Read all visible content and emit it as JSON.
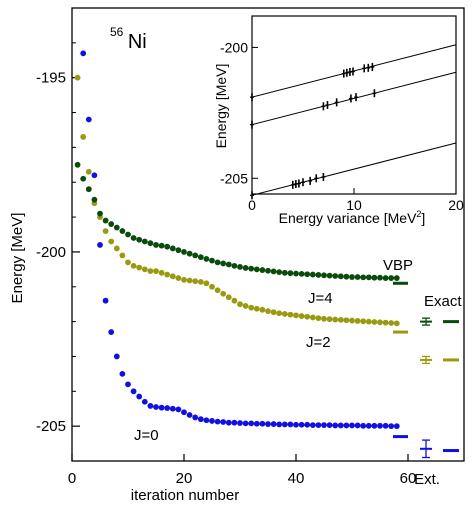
{
  "chart_data": [
    {
      "type": "scatter",
      "title": "",
      "annotation": {
        "isotope_mass": "56",
        "element": "Ni"
      },
      "xlabel": "iteration number",
      "ylabel": "Energy [MeV]",
      "xlim": [
        0,
        70
      ],
      "ylim": [
        -206,
        -193
      ],
      "xticks": [
        0,
        20,
        40,
        60
      ],
      "xtick_labels": [
        "0",
        "20",
        "40",
        "60"
      ],
      "extra_xtick_label": "Ext.",
      "yticks": [
        -195,
        -200,
        -205
      ],
      "ytick_labels": [
        "-195",
        "-200",
        "-205"
      ],
      "grid": false,
      "series": [
        {
          "name": "J=0",
          "color": "#1010e0",
          "x": [
            2,
            3,
            4,
            5,
            6,
            7,
            8,
            9,
            10,
            11,
            12,
            13,
            14,
            15,
            16,
            17,
            18,
            19,
            20,
            21,
            22,
            23,
            24,
            25,
            26,
            27,
            28,
            29,
            30,
            31,
            32,
            33,
            34,
            35,
            36,
            37,
            38,
            39,
            40,
            41,
            42,
            43,
            44,
            45,
            46,
            47,
            48,
            49,
            50,
            51,
            52,
            53,
            54,
            55,
            56,
            57,
            58
          ],
          "values": [
            -194.3,
            -196.2,
            -197.8,
            -199.8,
            -201.4,
            -202.3,
            -203.0,
            -203.5,
            -203.8,
            -204.0,
            -204.15,
            -204.3,
            -204.42,
            -204.45,
            -204.47,
            -204.48,
            -204.5,
            -204.52,
            -204.6,
            -204.68,
            -204.75,
            -204.8,
            -204.83,
            -204.85,
            -204.87,
            -204.88,
            -204.9,
            -204.9,
            -204.91,
            -204.92,
            -204.92,
            -204.93,
            -204.93,
            -204.94,
            -204.94,
            -204.95,
            -204.95,
            -204.95,
            -204.96,
            -204.96,
            -204.96,
            -204.97,
            -204.97,
            -204.97,
            -204.97,
            -204.98,
            -204.98,
            -204.98,
            -204.98,
            -204.98,
            -204.99,
            -204.99,
            -204.99,
            -204.99,
            -204.99,
            -205.0,
            -205.0
          ]
        },
        {
          "name": "J=2",
          "color": "#9a9a10",
          "x": [
            1,
            2,
            3,
            4,
            5,
            6,
            7,
            8,
            9,
            10,
            11,
            12,
            13,
            14,
            15,
            16,
            17,
            18,
            19,
            20,
            21,
            22,
            23,
            24,
            25,
            26,
            27,
            28,
            29,
            30,
            31,
            32,
            33,
            34,
            35,
            36,
            37,
            38,
            39,
            40,
            41,
            42,
            43,
            44,
            45,
            46,
            47,
            48,
            49,
            50,
            51,
            52,
            53,
            54,
            55,
            56,
            57,
            58
          ],
          "values": [
            -195.0,
            -196.7,
            -197.7,
            -198.6,
            -199.0,
            -199.4,
            -199.7,
            -199.9,
            -200.1,
            -200.3,
            -200.4,
            -200.45,
            -200.5,
            -200.55,
            -200.55,
            -200.6,
            -200.65,
            -200.7,
            -200.75,
            -200.8,
            -200.82,
            -200.84,
            -200.86,
            -200.9,
            -201.0,
            -201.1,
            -201.2,
            -201.3,
            -201.4,
            -201.5,
            -201.55,
            -201.6,
            -201.63,
            -201.66,
            -201.7,
            -201.73,
            -201.76,
            -201.78,
            -201.8,
            -201.82,
            -201.84,
            -201.86,
            -201.88,
            -201.9,
            -201.92,
            -201.93,
            -201.94,
            -201.95,
            -201.96,
            -201.97,
            -201.98,
            -201.99,
            -202.0,
            -202.01,
            -202.02,
            -202.03,
            -202.04,
            -202.05
          ]
        },
        {
          "name": "J=4",
          "color": "#0a4a0a",
          "x": [
            1,
            2,
            3,
            4,
            5,
            6,
            7,
            8,
            9,
            10,
            11,
            12,
            13,
            14,
            15,
            16,
            17,
            18,
            19,
            20,
            21,
            22,
            23,
            24,
            25,
            26,
            27,
            28,
            29,
            30,
            31,
            32,
            33,
            34,
            35,
            36,
            37,
            38,
            39,
            40,
            41,
            42,
            43,
            44,
            45,
            46,
            47,
            48,
            49,
            50,
            51,
            52,
            53,
            54,
            55,
            56,
            57,
            58
          ],
          "values": [
            -197.5,
            -197.9,
            -198.2,
            -198.5,
            -198.9,
            -199.1,
            -199.2,
            -199.3,
            -199.4,
            -199.5,
            -199.6,
            -199.65,
            -199.7,
            -199.75,
            -199.8,
            -199.82,
            -199.85,
            -199.9,
            -199.95,
            -200.0,
            -200.05,
            -200.1,
            -200.15,
            -200.2,
            -200.25,
            -200.3,
            -200.33,
            -200.36,
            -200.4,
            -200.43,
            -200.46,
            -200.48,
            -200.5,
            -200.52,
            -200.54,
            -200.56,
            -200.58,
            -200.6,
            -200.61,
            -200.62,
            -200.63,
            -200.64,
            -200.65,
            -200.66,
            -200.67,
            -200.68,
            -200.69,
            -200.7,
            -200.71,
            -200.72,
            -200.72,
            -200.73,
            -200.73,
            -200.74,
            -200.74,
            -200.75,
            -200.75,
            -200.75
          ]
        }
      ],
      "vbp": {
        "label": "VBP",
        "values": [
          -205.3,
          -202.3,
          -200.9
        ]
      },
      "exact": {
        "label": "Exact",
        "values": [
          -205.7,
          -203.1,
          -202.0
        ],
        "extrapolated": [
          {
            "value": -205.65,
            "error": 0.25
          },
          {
            "value": -203.1,
            "error": 0.1
          },
          {
            "value": -202.0,
            "error": 0.1
          }
        ]
      },
      "legend": "none"
    },
    {
      "type": "scatter",
      "title": "",
      "xlabel": "Energy variance [MeV²]",
      "xlabel_main": "Energy variance [MeV",
      "xlabel_sup": "2",
      "xlabel_end": "]",
      "ylabel": "Energy [MeV]",
      "xlim": [
        0,
        20
      ],
      "ylim": [
        -205.6,
        -198.8
      ],
      "xticks": [
        0,
        10,
        20
      ],
      "xtick_labels": [
        "0",
        "10",
        "20"
      ],
      "yticks": [
        -200,
        -205
      ],
      "ytick_labels": [
        "-200",
        "-205"
      ],
      "grid": false,
      "fit_lines": [
        {
          "intercept": -201.9,
          "slope": 0.1
        },
        {
          "intercept": -202.95,
          "slope": 0.1
        },
        {
          "intercept": -205.65,
          "slope": 0.1
        }
      ],
      "series": [
        {
          "name": "J=4",
          "x": [
            0,
            9.0,
            9.3,
            9.6,
            9.9,
            11.0,
            11.4,
            11.8
          ],
          "values": [
            -201.9,
            -201.0,
            -200.97,
            -200.94,
            -200.92,
            -200.8,
            -200.78,
            -200.75
          ]
        },
        {
          "name": "J=2",
          "x": [
            0,
            7.0,
            7.4,
            8.3,
            9.7,
            10.2,
            12.0
          ],
          "values": [
            -202.95,
            -202.25,
            -202.2,
            -202.1,
            -201.95,
            -201.9,
            -201.75
          ]
        },
        {
          "name": "J=0",
          "x": [
            0,
            4.0,
            4.3,
            4.6,
            5.0,
            5.7,
            6.3,
            7.0
          ],
          "values": [
            -205.65,
            -205.25,
            -205.22,
            -205.2,
            -205.15,
            -205.1,
            -205.0,
            -204.95
          ]
        }
      ]
    }
  ]
}
